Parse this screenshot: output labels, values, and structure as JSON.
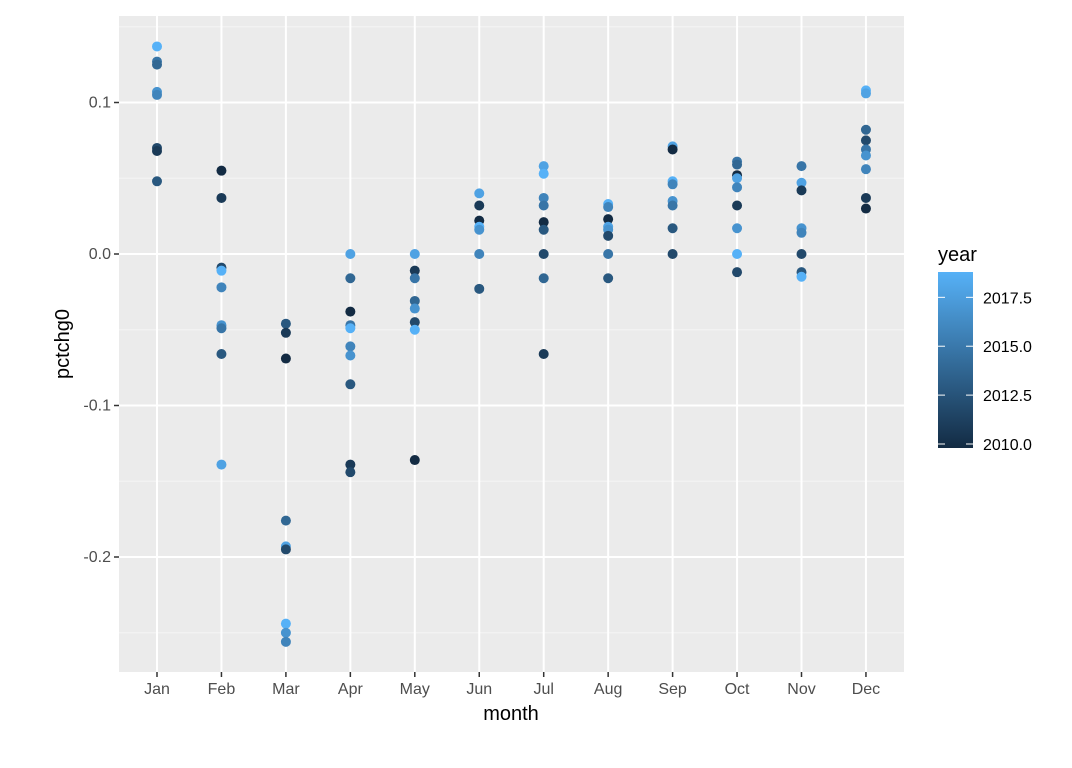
{
  "chart_data": {
    "type": "scatter",
    "title": "",
    "xlabel": "month",
    "ylabel": "pctchg0",
    "categories": [
      "Jan",
      "Feb",
      "Mar",
      "Apr",
      "May",
      "Jun",
      "Jul",
      "Aug",
      "Sep",
      "Oct",
      "Nov",
      "Dec"
    ],
    "ylim": [
      -0.275,
      0.158
    ],
    "yticks": [
      -0.2,
      -0.1,
      0.0,
      0.1
    ],
    "ytick_labels": [
      "-0.2",
      "-0.1",
      "0.0",
      "0.1"
    ],
    "grid": true,
    "color_scale": {
      "variable": "year",
      "low": 2010,
      "high": 2019,
      "low_color": "#132B43",
      "high_color": "#56B1F7",
      "breaks": [
        2010.0,
        2012.5,
        2015.0,
        2017.5
      ],
      "break_labels": [
        "2010.0",
        "2012.5",
        "2015.0",
        "2017.5"
      ]
    },
    "legend_position": "right",
    "points": [
      {
        "month": "Jan",
        "y": 0.137,
        "year": 2019
      },
      {
        "month": "Jan",
        "y": 0.127,
        "year": 2015
      },
      {
        "month": "Jan",
        "y": 0.125,
        "year": 2014
      },
      {
        "month": "Jan",
        "y": 0.107,
        "year": 2017
      },
      {
        "month": "Jan",
        "y": 0.105,
        "year": 2016
      },
      {
        "month": "Jan",
        "y": 0.07,
        "year": 2012
      },
      {
        "month": "Jan",
        "y": 0.068,
        "year": 2011
      },
      {
        "month": "Jan",
        "y": 0.048,
        "year": 2013
      },
      {
        "month": "Feb",
        "y": 0.055,
        "year": 2010
      },
      {
        "month": "Feb",
        "y": 0.037,
        "year": 2011
      },
      {
        "month": "Feb",
        "y": -0.009,
        "year": 2012
      },
      {
        "month": "Feb",
        "y": -0.011,
        "year": 2019
      },
      {
        "month": "Feb",
        "y": -0.022,
        "year": 2016
      },
      {
        "month": "Feb",
        "y": -0.047,
        "year": 2017
      },
      {
        "month": "Feb",
        "y": -0.049,
        "year": 2015
      },
      {
        "month": "Feb",
        "y": -0.066,
        "year": 2013
      },
      {
        "month": "Feb",
        "y": -0.139,
        "year": 2018
      },
      {
        "month": "Mar",
        "y": -0.046,
        "year": 2013
      },
      {
        "month": "Mar",
        "y": -0.052,
        "year": 2011
      },
      {
        "month": "Mar",
        "y": -0.069,
        "year": 2010
      },
      {
        "month": "Mar",
        "y": -0.176,
        "year": 2014
      },
      {
        "month": "Mar",
        "y": -0.193,
        "year": 2018
      },
      {
        "month": "Mar",
        "y": -0.195,
        "year": 2012
      },
      {
        "month": "Mar",
        "y": -0.244,
        "year": 2019
      },
      {
        "month": "Mar",
        "y": -0.25,
        "year": 2017
      },
      {
        "month": "Mar",
        "y": -0.256,
        "year": 2016
      },
      {
        "month": "Apr",
        "y": 0.0,
        "year": 2018
      },
      {
        "month": "Apr",
        "y": -0.016,
        "year": 2014
      },
      {
        "month": "Apr",
        "y": -0.038,
        "year": 2010
      },
      {
        "month": "Apr",
        "y": -0.047,
        "year": 2015
      },
      {
        "month": "Apr",
        "y": -0.049,
        "year": 2019
      },
      {
        "month": "Apr",
        "y": -0.061,
        "year": 2016
      },
      {
        "month": "Apr",
        "y": -0.067,
        "year": 2017
      },
      {
        "month": "Apr",
        "y": -0.086,
        "year": 2013
      },
      {
        "month": "Apr",
        "y": -0.139,
        "year": 2011
      },
      {
        "month": "Apr",
        "y": -0.144,
        "year": 2012
      },
      {
        "month": "May",
        "y": 0.0,
        "year": 2018
      },
      {
        "month": "May",
        "y": -0.011,
        "year": 2011
      },
      {
        "month": "May",
        "y": -0.016,
        "year": 2015
      },
      {
        "month": "May",
        "y": -0.031,
        "year": 2014
      },
      {
        "month": "May",
        "y": -0.036,
        "year": 2017
      },
      {
        "month": "May",
        "y": -0.045,
        "year": 2012
      },
      {
        "month": "May",
        "y": -0.05,
        "year": 2019
      },
      {
        "month": "May",
        "y": -0.136,
        "year": 2010
      },
      {
        "month": "Jun",
        "y": 0.04,
        "year": 2018
      },
      {
        "month": "Jun",
        "y": 0.032,
        "year": 2011
      },
      {
        "month": "Jun",
        "y": 0.022,
        "year": 2010
      },
      {
        "month": "Jun",
        "y": 0.018,
        "year": 2019
      },
      {
        "month": "Jun",
        "y": 0.016,
        "year": 2017
      },
      {
        "month": "Jun",
        "y": 0.0,
        "year": 2016
      },
      {
        "month": "Jun",
        "y": -0.023,
        "year": 2013
      },
      {
        "month": "Jul",
        "y": 0.058,
        "year": 2018
      },
      {
        "month": "Jul",
        "y": 0.053,
        "year": 2019
      },
      {
        "month": "Jul",
        "y": 0.037,
        "year": 2016
      },
      {
        "month": "Jul",
        "y": 0.032,
        "year": 2015
      },
      {
        "month": "Jul",
        "y": 0.021,
        "year": 2010
      },
      {
        "month": "Jul",
        "y": 0.016,
        "year": 2013
      },
      {
        "month": "Jul",
        "y": 0.0,
        "year": 2012
      },
      {
        "month": "Jul",
        "y": -0.016,
        "year": 2014
      },
      {
        "month": "Jul",
        "y": -0.066,
        "year": 2011
      },
      {
        "month": "Aug",
        "y": 0.033,
        "year": 2019
      },
      {
        "month": "Aug",
        "y": 0.031,
        "year": 2016
      },
      {
        "month": "Aug",
        "y": 0.023,
        "year": 2010
      },
      {
        "month": "Aug",
        "y": 0.018,
        "year": 2018
      },
      {
        "month": "Aug",
        "y": 0.016,
        "year": 2017
      },
      {
        "month": "Aug",
        "y": 0.012,
        "year": 2012
      },
      {
        "month": "Aug",
        "y": 0.0,
        "year": 2015
      },
      {
        "month": "Aug",
        "y": -0.016,
        "year": 2013
      },
      {
        "month": "Sep",
        "y": 0.071,
        "year": 2018
      },
      {
        "month": "Sep",
        "y": 0.069,
        "year": 2010
      },
      {
        "month": "Sep",
        "y": 0.048,
        "year": 2019
      },
      {
        "month": "Sep",
        "y": 0.046,
        "year": 2016
      },
      {
        "month": "Sep",
        "y": 0.035,
        "year": 2017
      },
      {
        "month": "Sep",
        "y": 0.032,
        "year": 2015
      },
      {
        "month": "Sep",
        "y": 0.017,
        "year": 2013
      },
      {
        "month": "Sep",
        "y": 0.0,
        "year": 2012
      },
      {
        "month": "Oct",
        "y": 0.061,
        "year": 2015
      },
      {
        "month": "Oct",
        "y": 0.059,
        "year": 2014
      },
      {
        "month": "Oct",
        "y": 0.052,
        "year": 2010
      },
      {
        "month": "Oct",
        "y": 0.05,
        "year": 2018
      },
      {
        "month": "Oct",
        "y": 0.044,
        "year": 2016
      },
      {
        "month": "Oct",
        "y": 0.032,
        "year": 2011
      },
      {
        "month": "Oct",
        "y": 0.017,
        "year": 2017
      },
      {
        "month": "Oct",
        "y": 0.0,
        "year": 2019
      },
      {
        "month": "Oct",
        "y": -0.012,
        "year": 2012
      },
      {
        "month": "Nov",
        "y": 0.058,
        "year": 2015
      },
      {
        "month": "Nov",
        "y": 0.047,
        "year": 2018
      },
      {
        "month": "Nov",
        "y": 0.042,
        "year": 2011
      },
      {
        "month": "Nov",
        "y": 0.017,
        "year": 2017
      },
      {
        "month": "Nov",
        "y": 0.014,
        "year": 2016
      },
      {
        "month": "Nov",
        "y": 0.0,
        "year": 2012
      },
      {
        "month": "Nov",
        "y": -0.012,
        "year": 2013
      },
      {
        "month": "Nov",
        "y": -0.015,
        "year": 2019
      },
      {
        "month": "Dec",
        "y": 0.108,
        "year": 2019
      },
      {
        "month": "Dec",
        "y": 0.106,
        "year": 2018
      },
      {
        "month": "Dec",
        "y": 0.082,
        "year": 2014
      },
      {
        "month": "Dec",
        "y": 0.075,
        "year": 2012
      },
      {
        "month": "Dec",
        "y": 0.069,
        "year": 2015
      },
      {
        "month": "Dec",
        "y": 0.065,
        "year": 2017
      },
      {
        "month": "Dec",
        "y": 0.056,
        "year": 2016
      },
      {
        "month": "Dec",
        "y": 0.037,
        "year": 2011
      },
      {
        "month": "Dec",
        "y": 0.03,
        "year": 2010
      }
    ]
  },
  "axes": {
    "x_title": "month",
    "y_title": "pctchg0"
  },
  "legend": {
    "title": "year",
    "labels": [
      "2017.5",
      "2015.0",
      "2012.5",
      "2010.0"
    ]
  },
  "colors": {
    "panel_background": "#EBEBEB",
    "grid_major": "#FFFFFF",
    "grid_minor": "#F5F5F5",
    "tick_text": "#4D4D4D",
    "tick_mark": "#333333"
  }
}
